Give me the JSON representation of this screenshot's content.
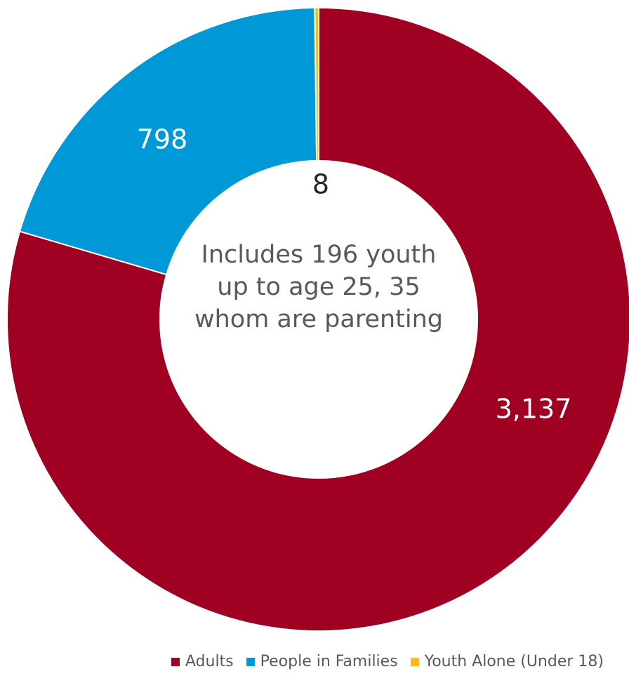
{
  "chart_data": {
    "type": "pie",
    "categories": [
      "Adults",
      "People in Families",
      "Youth Alone (Under 18)"
    ],
    "values": [
      3137,
      798,
      8
    ],
    "value_labels": [
      "3,137",
      "798",
      "8"
    ],
    "colors": [
      "#a00021",
      "#0098d6",
      "#ffb81c"
    ],
    "annotation": "Includes 196 youth up to age 25, 35 whom are parenting",
    "legend": "bottom"
  }
}
